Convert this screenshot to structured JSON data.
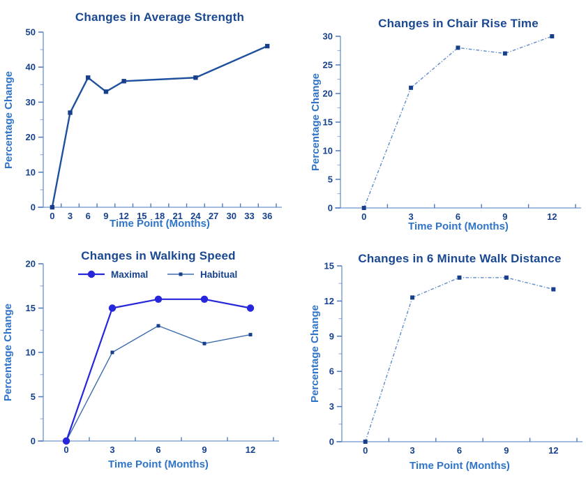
{
  "page": {
    "background": "#ffffff",
    "description": "Four line charts of percentage change over time"
  },
  "colors": {
    "title": "#1A4892",
    "axis_label": "#2F74C8",
    "tick_label": "#16418C",
    "axis_line": "#85A6D8",
    "tick_mark": "#4F79BC",
    "strength_line": "#1E509E",
    "light_series_line": "#5D8BC9",
    "marker_navy": "#173F8C",
    "maximal_blue": "#2626DB",
    "habitual_blue": "#3E6DAD"
  },
  "chart_data": [
    {
      "type": "line",
      "title": "Changes in Average Strength",
      "xlabel": "Time Point (Months)",
      "ylabel": "Percentage Change",
      "x_labels": [
        "0",
        "3",
        "6",
        "9",
        "12",
        "15",
        "18",
        "21",
        "24",
        "27",
        "30",
        "33",
        "36"
      ],
      "y_ticks": [
        0,
        10,
        20,
        30,
        40,
        50
      ],
      "ylim": [
        0,
        50
      ],
      "grid": false,
      "legend": false,
      "series": [
        {
          "name": "Average Strength",
          "x": [
            0,
            3,
            6,
            9,
            12,
            24,
            36
          ],
          "values": [
            0,
            27,
            37,
            33,
            36,
            37,
            46
          ],
          "color": "#1E509E",
          "line_style": "solid",
          "line_width": 2.4,
          "marker": "square",
          "marker_color": "#173F8C",
          "marker_size": 6.4
        }
      ]
    },
    {
      "type": "line",
      "title": "Changes in Chair Rise Time",
      "xlabel": "Time Point (Months)",
      "ylabel": "Percentage Change",
      "x_labels": [
        "0",
        "3",
        "6",
        "9",
        "12"
      ],
      "y_ticks": [
        0,
        5,
        10,
        15,
        20,
        25,
        30
      ],
      "ylim": [
        0,
        30
      ],
      "grid": false,
      "legend": false,
      "series": [
        {
          "name": "Chair Rise Time",
          "x": [
            0,
            3,
            6,
            9,
            12
          ],
          "values": [
            0,
            21,
            28,
            27,
            30
          ],
          "color": "#5D8BC9",
          "line_style": "dashdot",
          "line_width": 1.4,
          "marker": "square",
          "marker_color": "#173F8C",
          "marker_size": 6
        }
      ]
    },
    {
      "type": "line",
      "title": "Changes in Walking Speed",
      "xlabel": "Time Point (Months)",
      "ylabel": "Percentage Change",
      "x_labels": [
        "0",
        "3",
        "6",
        "9",
        "12"
      ],
      "y_ticks": [
        0,
        5,
        10,
        15,
        20
      ],
      "ylim": [
        0,
        20
      ],
      "grid": false,
      "legend": true,
      "legend_position": "top",
      "series": [
        {
          "name": "Maximal",
          "x": [
            0,
            3,
            6,
            9,
            12
          ],
          "values": [
            0,
            15,
            16,
            16,
            15
          ],
          "color": "#2626DB",
          "line_style": "solid",
          "line_width": 2.2,
          "marker": "circle",
          "marker_color": "#2626DB",
          "marker_size": 10.4
        },
        {
          "name": "Habitual",
          "x": [
            0,
            3,
            6,
            9,
            12
          ],
          "values": [
            0,
            10,
            13,
            11,
            12
          ],
          "color": "#3E6DAD",
          "line_style": "solid",
          "line_width": 1.4,
          "marker": "square",
          "marker_color": "#173F8C",
          "marker_size": 5
        }
      ]
    },
    {
      "type": "line",
      "title": "Changes in 6 Minute Walk Distance",
      "xlabel": "Time Point (Months)",
      "ylabel": "Percentage Change",
      "x_labels": [
        "0",
        "3",
        "6",
        "9",
        "12"
      ],
      "y_ticks": [
        0,
        3,
        6,
        9,
        12,
        15
      ],
      "ylim": [
        0,
        15
      ],
      "grid": false,
      "legend": false,
      "series": [
        {
          "name": "6 Minute Walk Distance",
          "x": [
            0,
            3,
            6,
            9,
            12
          ],
          "values": [
            0,
            12.3,
            14,
            14,
            13
          ],
          "color": "#5D8BC9",
          "line_style": "dashdot",
          "line_width": 1.4,
          "marker": "square",
          "marker_color": "#173F8C",
          "marker_size": 6
        }
      ]
    }
  ]
}
